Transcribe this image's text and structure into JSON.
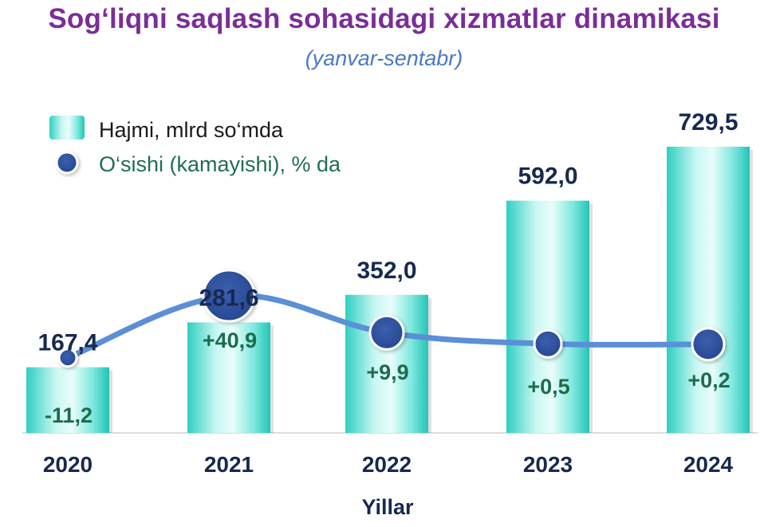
{
  "chart_data": {
    "type": "bar",
    "title": "Sog‘liqni saqlash sohasidagi xizmatlar dinamikasi",
    "subtitle": "(yanvar-sentabr)",
    "xlabel": "Yillar",
    "categories": [
      "2020",
      "2021",
      "2022",
      "2023",
      "2024"
    ],
    "series": [
      {
        "name": "Hajmi, mlrd so‘mda",
        "type": "bar",
        "values": [
          167.4,
          281.6,
          352.0,
          592.0,
          729.5
        ],
        "labels": [
          "167,4",
          "281,6",
          "352,0",
          "592,0",
          "729,5"
        ]
      },
      {
        "name": "O‘sishi (kamayishi), % da",
        "type": "line",
        "values": [
          -11.2,
          40.9,
          9.9,
          0.5,
          0.2
        ],
        "labels": [
          "-11,2",
          "+40,9",
          "+9,9",
          "+0,5",
          "+0,2"
        ]
      }
    ],
    "legend": "top-left",
    "grid": false,
    "colors": {
      "bar": "#3fd9cc",
      "line": "#5b8fd6",
      "marker": "#2f4f9a",
      "title": "#7a2e98",
      "subtitle": "#4a78c8"
    }
  }
}
